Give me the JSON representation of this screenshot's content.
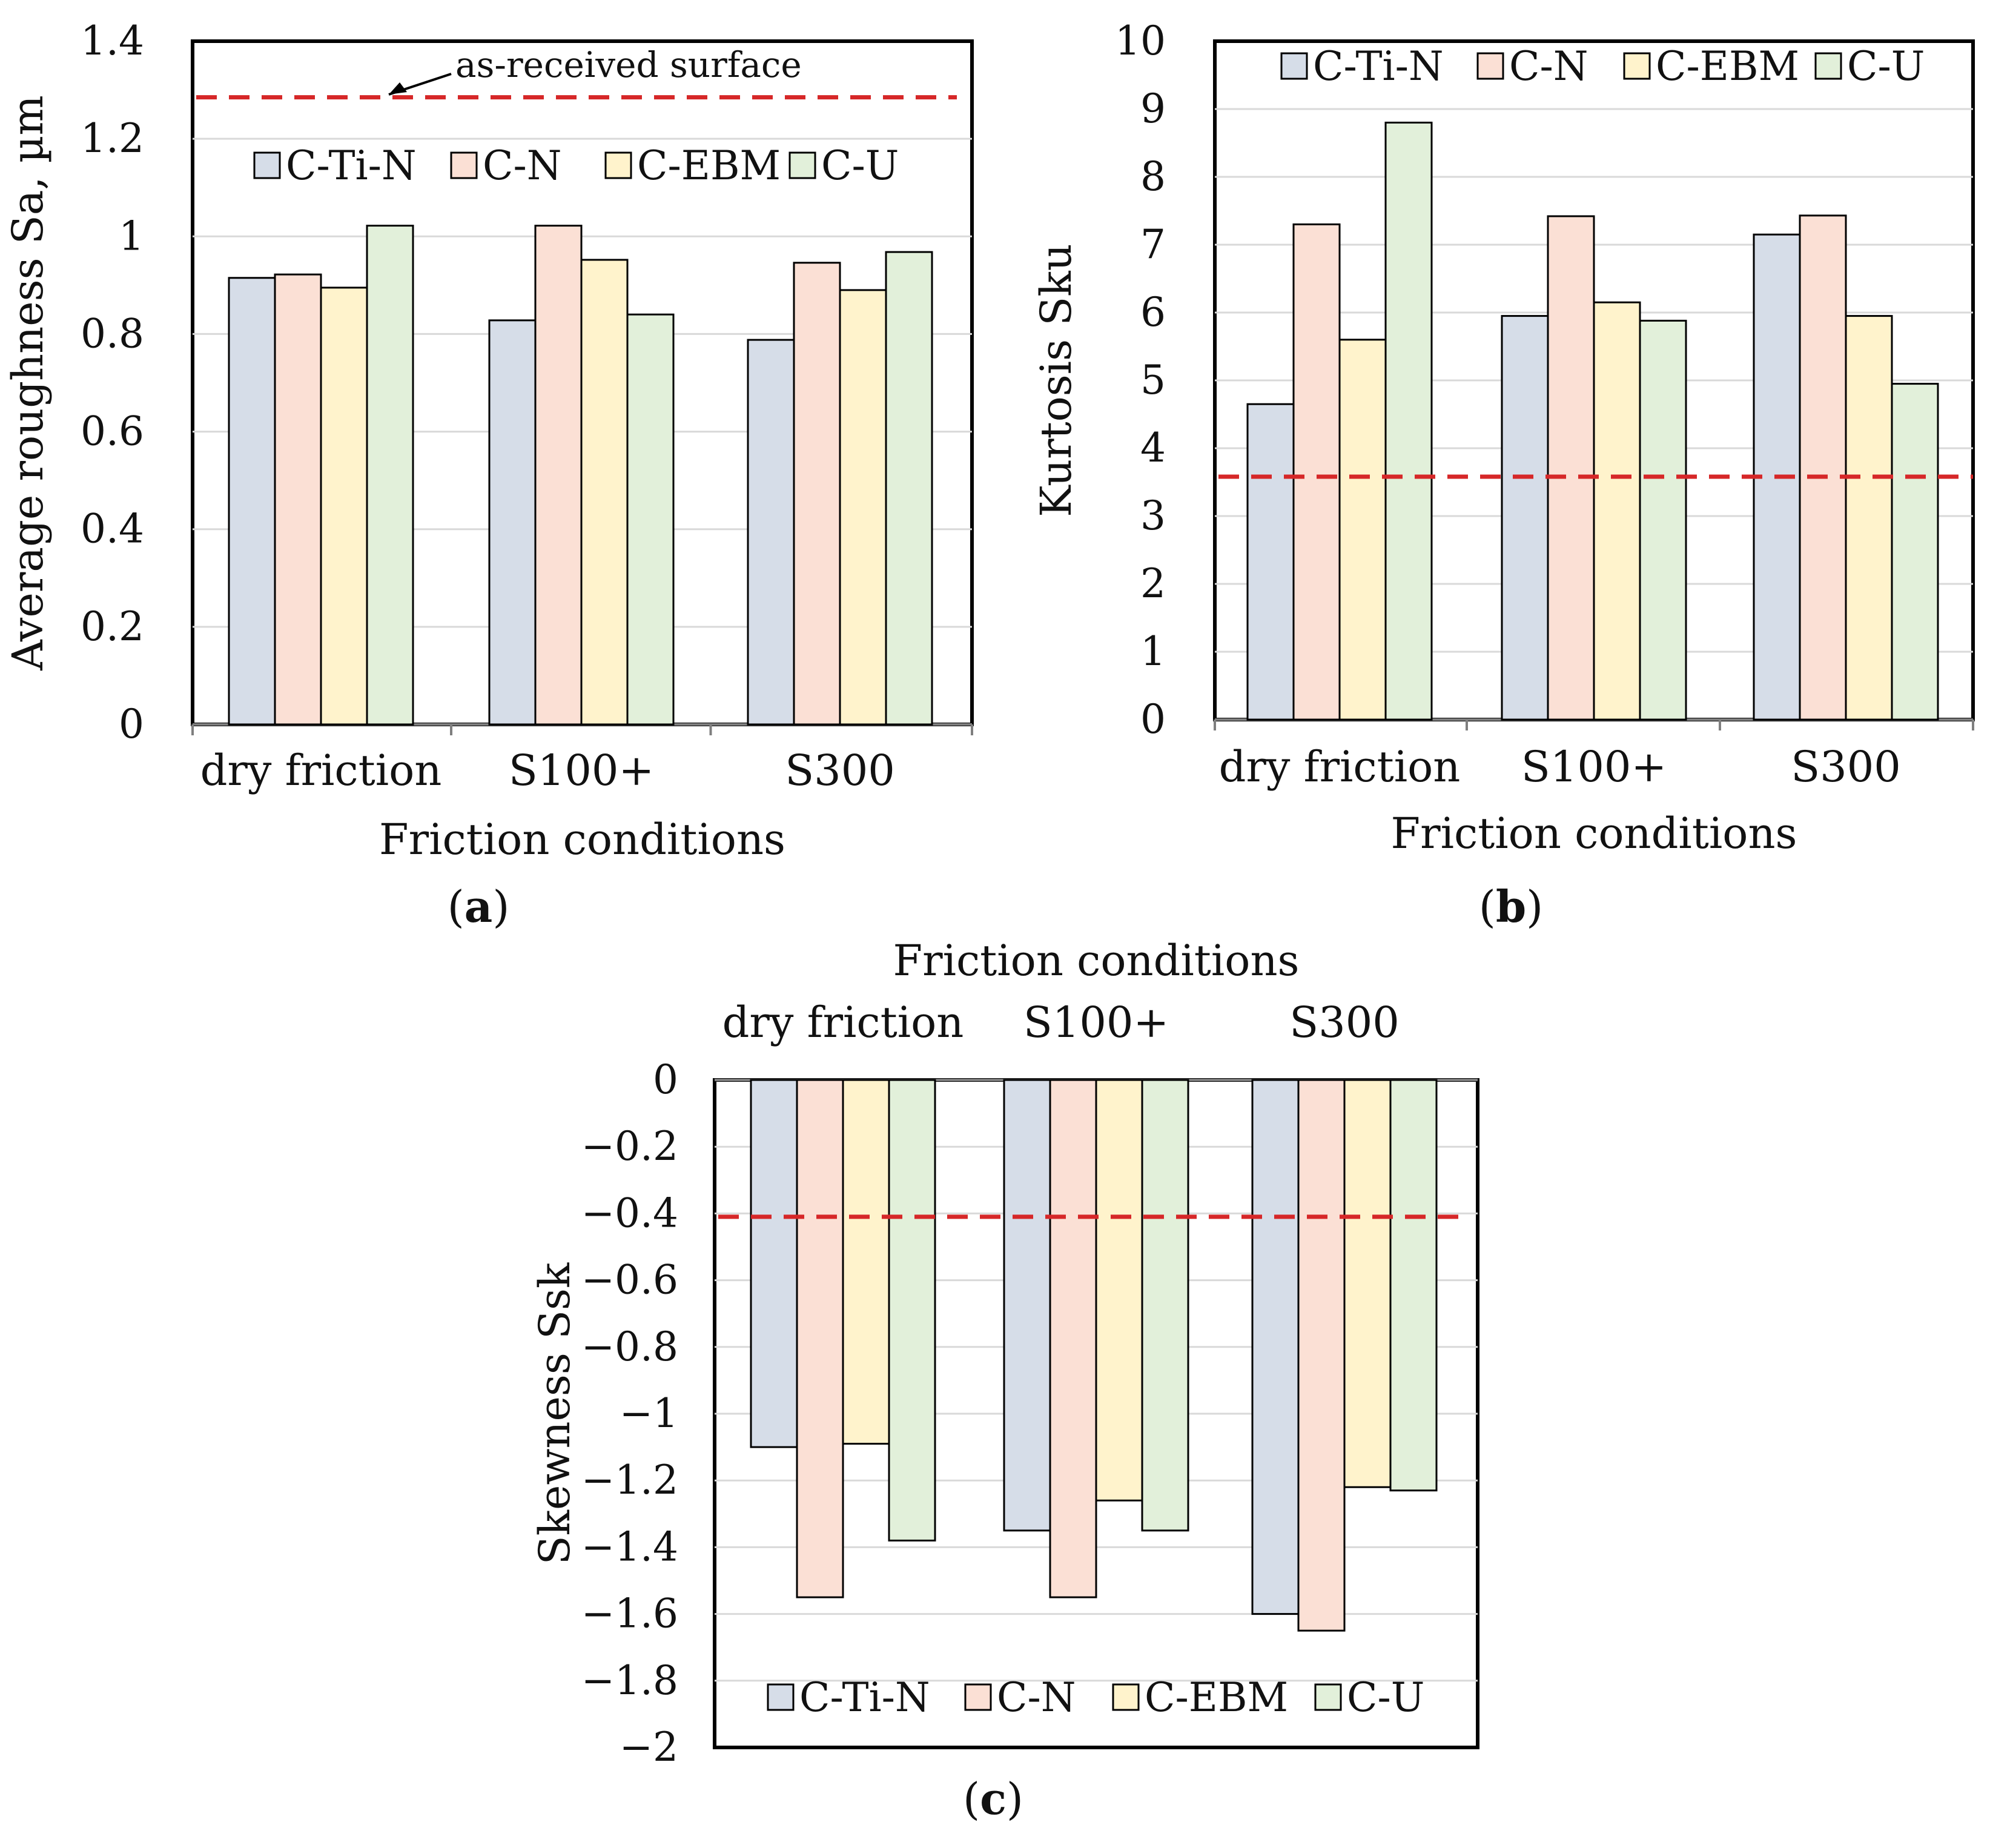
{
  "colors": {
    "C-Ti-N": "#d6dde8",
    "C-N": "#fbe0d5",
    "C-EBM": "#fff3cc",
    "C-U": "#e2f0da",
    "reference_line": "#d62728"
  },
  "chart_data": [
    {
      "id": "a",
      "type": "bar",
      "panel_label": "a",
      "categories": [
        "dry friction",
        "S100+",
        "S300"
      ],
      "series": [
        {
          "name": "C-Ti-N",
          "values": [
            0.915,
            0.828,
            0.788
          ]
        },
        {
          "name": "C-N",
          "values": [
            0.922,
            1.022,
            0.946
          ]
        },
        {
          "name": "C-EBM",
          "values": [
            0.895,
            0.952,
            0.89
          ]
        },
        {
          "name": "C-U",
          "values": [
            1.022,
            0.84,
            0.968
          ]
        }
      ],
      "ylabel": "Average roughness Sa, µm",
      "xlabel": "Friction conditions",
      "ylim": [
        0,
        1.4
      ],
      "yticks": [
        0,
        0.2,
        0.4,
        0.6,
        0.8,
        1.0,
        1.2,
        1.4
      ],
      "ytick_labels": [
        "0",
        "0.2",
        "0.4",
        "0.6",
        "0.8",
        "1",
        "1.2",
        "1.4"
      ],
      "reference_value": 1.285,
      "annotation": "as-received surface",
      "legend_position": "top"
    },
    {
      "id": "b",
      "type": "bar",
      "panel_label": "b",
      "categories": [
        "dry friction",
        "S100+",
        "S300"
      ],
      "series": [
        {
          "name": "C-Ti-N",
          "values": [
            4.65,
            5.95,
            7.15
          ]
        },
        {
          "name": "C-N",
          "values": [
            7.3,
            7.42,
            7.43
          ]
        },
        {
          "name": "C-EBM",
          "values": [
            5.6,
            6.15,
            5.95
          ]
        },
        {
          "name": "C-U",
          "values": [
            8.8,
            5.88,
            4.95
          ]
        }
      ],
      "ylabel": "Kurtosis Sku",
      "xlabel": "Friction conditions",
      "ylim": [
        0,
        10
      ],
      "yticks": [
        0,
        1,
        2,
        3,
        4,
        5,
        6,
        7,
        8,
        9,
        10
      ],
      "ytick_labels": [
        "0",
        "1",
        "2",
        "3",
        "4",
        "5",
        "6",
        "7",
        "8",
        "9",
        "10"
      ],
      "reference_value": 3.58,
      "legend_position": "top"
    },
    {
      "id": "c",
      "type": "bar",
      "panel_label": "c",
      "categories": [
        "dry friction",
        "S100+",
        "S300"
      ],
      "series": [
        {
          "name": "C-Ti-N",
          "values": [
            -1.1,
            -1.35,
            -1.6
          ]
        },
        {
          "name": "C-N",
          "values": [
            -1.55,
            -1.55,
            -1.65
          ]
        },
        {
          "name": "C-EBM",
          "values": [
            -1.09,
            -1.26,
            -1.22
          ]
        },
        {
          "name": "C-U",
          "values": [
            -1.38,
            -1.35,
            -1.23
          ]
        }
      ],
      "ylabel": "Skewness Ssk",
      "xlabel": "Friction conditions",
      "ylim": [
        -2,
        0
      ],
      "yticks": [
        0,
        -0.2,
        -0.4,
        -0.6,
        -0.8,
        -1.0,
        -1.2,
        -1.4,
        -1.6,
        -1.8,
        -2.0
      ],
      "ytick_labels": [
        "0",
        "−0.2",
        "−0.4",
        "−0.6",
        "−0.8",
        "−1",
        "−1.2",
        "−1.4",
        "−1.6",
        "−1.8",
        "−2"
      ],
      "reference_value": -0.41,
      "legend_position": "bottom"
    }
  ]
}
